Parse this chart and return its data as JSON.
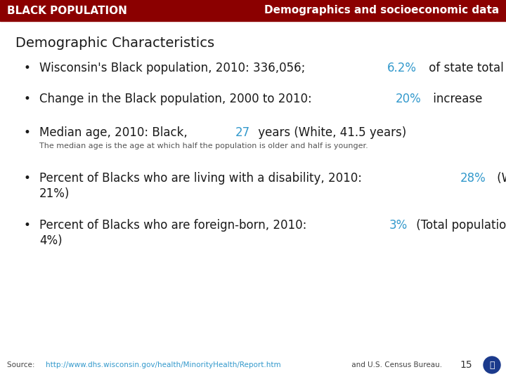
{
  "header_bg_color": "#8B0000",
  "header_text_color": "#FFFFFF",
  "header_left": "BLACK POPULATION",
  "header_right": "Demographics and socioeconomic data",
  "bg_color": "#FFFFFF",
  "section_title": "Demographic Characteristics",
  "highlight_color": "#3399CC",
  "normal_color": "#1A1A1A",
  "bullet_items": [
    {
      "line1_parts": [
        {
          "text": "Wisconsin's Black population, 2010: 336,056; ",
          "color": "#1A1A1A"
        },
        {
          "text": "6.2%",
          "color": "#3399CC"
        },
        {
          "text": " of state total",
          "color": "#1A1A1A"
        }
      ],
      "line2_parts": null,
      "sub": null
    },
    {
      "line1_parts": [
        {
          "text": "Change in the Black population, 2000 to 2010: ",
          "color": "#1A1A1A"
        },
        {
          "text": "20%",
          "color": "#3399CC"
        },
        {
          "text": " increase",
          "color": "#1A1A1A"
        }
      ],
      "line2_parts": null,
      "sub": null
    },
    {
      "line1_parts": [
        {
          "text": "Median age, 2010: Black, ",
          "color": "#1A1A1A"
        },
        {
          "text": "27",
          "color": "#3399CC"
        },
        {
          "text": " years (White, 41.5 years)",
          "color": "#1A1A1A"
        }
      ],
      "line2_parts": null,
      "sub": "The median age is the age at which half the population is older and half is younger."
    },
    {
      "line1_parts": [
        {
          "text": "Percent of Blacks who are living with a disability, 2010: ",
          "color": "#1A1A1A"
        },
        {
          "text": "28%",
          "color": "#3399CC"
        },
        {
          "text": " (White,",
          "color": "#1A1A1A"
        }
      ],
      "line2_parts": [
        {
          "text": "21%)",
          "color": "#1A1A1A"
        }
      ],
      "sub": null
    },
    {
      "line1_parts": [
        {
          "text": "Percent of Blacks who are foreign-born, 2010: ",
          "color": "#1A1A1A"
        },
        {
          "text": "3%",
          "color": "#3399CC"
        },
        {
          "text": " (Total population,",
          "color": "#1A1A1A"
        }
      ],
      "line2_parts": [
        {
          "text": "4%)",
          "color": "#1A1A1A"
        }
      ],
      "sub": null
    }
  ],
  "footer_source": "Source: ",
  "footer_url": "http://www.dhs.wisconsin.gov/health/MinorityHealth/Report.htm",
  "footer_suffix": " and U.S. Census Bureau.",
  "footer_url_color": "#3399CC",
  "page_number": "15",
  "icon_color": "#1B3A8C",
  "bullet_fontsize": 12,
  "title_fontsize": 14,
  "header_fontsize": 11,
  "footer_fontsize": 7.5
}
